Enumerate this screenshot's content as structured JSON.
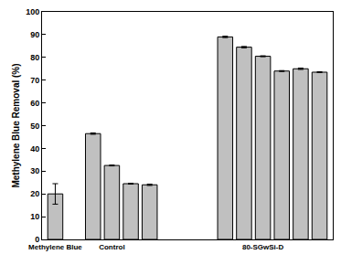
{
  "chart_data": {
    "type": "bar",
    "y_label": "Methylene Blue Removal (%)",
    "categories": [
      "Methylene Blue",
      null,
      null,
      "Control",
      null,
      null,
      null,
      null,
      null,
      null,
      null,
      "80-SGwSi-D",
      null,
      null,
      null
    ],
    "values": [
      20,
      null,
      46.5,
      32.5,
      24.5,
      24,
      null,
      null,
      null,
      89,
      84.5,
      80.5,
      74,
      75,
      73.5
    ],
    "error": [
      4.5,
      null,
      0.3,
      0.2,
      0.2,
      0.3,
      null,
      null,
      null,
      0.3,
      0.3,
      0.2,
      0.2,
      0.3,
      0.2
    ],
    "color": "#c0c0c0",
    "ylim": [
      0,
      100
    ],
    "yticks": [
      0,
      10,
      20,
      30,
      40,
      50,
      60,
      70,
      80,
      90,
      100
    ],
    "grid": false
  }
}
